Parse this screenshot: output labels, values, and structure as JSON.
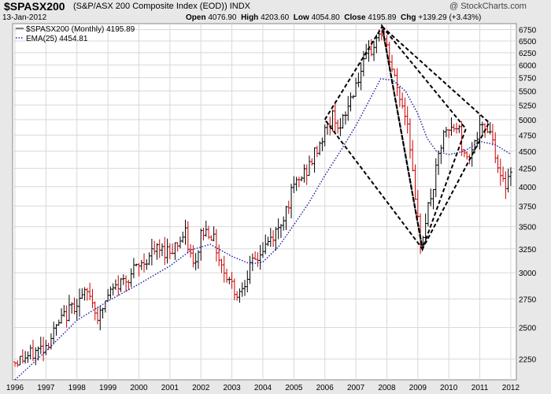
{
  "header": {
    "symbol": "$SPASX200",
    "description": "(S&P/ASX 200 Composite Index (EOD))  INDX",
    "brand": "@ StockCharts.com",
    "date": "13-Jan-2012",
    "open_label": "Open",
    "open": "4076.90",
    "high_label": "High",
    "high": "4203.60",
    "low_label": "Low",
    "low": "4054.80",
    "close_label": "Close",
    "close": "4195.89",
    "chg_label": "Chg",
    "chg": "+139.29 (+3.43%)"
  },
  "legend": {
    "price_label": "$SPASX200 (Monthly) 4195.89",
    "ema_label": "EMA(25) 4454.81"
  },
  "colors": {
    "up": "#000000",
    "down": "#cc0000",
    "ema": "#1a1aa6",
    "grid": "#d8d8d8",
    "plot_bg": "#ffffff",
    "frame_bg": "#e8e8e8"
  },
  "chart_data": {
    "type": "ohlc-bar",
    "frequency": "monthly",
    "x_tick_labels": [
      "1996",
      "1997",
      "1998",
      "1999",
      "2000",
      "2001",
      "2002",
      "2003",
      "2004",
      "2005",
      "2006",
      "2007",
      "2008",
      "2009",
      "2010",
      "2011",
      "2012"
    ],
    "y_tick_labels": [
      2250,
      2500,
      2750,
      3000,
      3250,
      3500,
      3750,
      4000,
      4250,
      4500,
      4750,
      5000,
      5250,
      5500,
      5750,
      6000,
      6250,
      6500,
      6750
    ],
    "ylim": [
      2100,
      6850
    ],
    "grid": true,
    "legend_position": "top-left",
    "close_path": [
      [
        1996.0,
        2230
      ],
      [
        1996.5,
        2280
      ],
      [
        1997.0,
        2360
      ],
      [
        1997.5,
        2560
      ],
      [
        1998.0,
        2730
      ],
      [
        1998.4,
        2810
      ],
      [
        1998.7,
        2570
      ],
      [
        1999.0,
        2780
      ],
      [
        1999.5,
        2930
      ],
      [
        2000.0,
        3060
      ],
      [
        2000.5,
        3230
      ],
      [
        2001.0,
        3240
      ],
      [
        2001.5,
        3400
      ],
      [
        2001.8,
        3000
      ],
      [
        2002.0,
        3430
      ],
      [
        2002.3,
        3460
      ],
      [
        2002.7,
        3050
      ],
      [
        2003.0,
        2890
      ],
      [
        2003.2,
        2780
      ],
      [
        2003.5,
        3000
      ],
      [
        2004.0,
        3240
      ],
      [
        2004.5,
        3470
      ],
      [
        2005.0,
        3980
      ],
      [
        2005.5,
        4280
      ],
      [
        2006.0,
        4800
      ],
      [
        2006.3,
        5100
      ],
      [
        2006.5,
        4820
      ],
      [
        2007.0,
        5650
      ],
      [
        2007.5,
        6300
      ],
      [
        2007.8,
        6750
      ],
      [
        2008.0,
        6300
      ],
      [
        2008.3,
        5600
      ],
      [
        2008.7,
        4900
      ],
      [
        2008.9,
        3800
      ],
      [
        2009.1,
        3300
      ],
      [
        2009.2,
        3500
      ],
      [
        2009.5,
        4000
      ],
      [
        2009.8,
        4700
      ],
      [
        2010.0,
        4800
      ],
      [
        2010.3,
        4900
      ],
      [
        2010.5,
        4400
      ],
      [
        2010.8,
        4600
      ],
      [
        2011.0,
        4800
      ],
      [
        2011.3,
        4900
      ],
      [
        2011.5,
        4500
      ],
      [
        2011.7,
        4000
      ],
      [
        2011.9,
        4100
      ],
      [
        2012.0,
        4195.89
      ]
    ],
    "ema_path": [
      [
        1996.0,
        2100
      ],
      [
        1997.0,
        2310
      ],
      [
        1998.0,
        2560
      ],
      [
        1999.0,
        2730
      ],
      [
        2000.0,
        2890
      ],
      [
        2001.0,
        3070
      ],
      [
        2001.7,
        3240
      ],
      [
        2002.3,
        3300
      ],
      [
        2003.0,
        3170
      ],
      [
        2003.6,
        3090
      ],
      [
        2004.0,
        3110
      ],
      [
        2004.5,
        3270
      ],
      [
        2005.0,
        3520
      ],
      [
        2005.5,
        3800
      ],
      [
        2006.0,
        4150
      ],
      [
        2006.5,
        4500
      ],
      [
        2007.0,
        4900
      ],
      [
        2007.5,
        5400
      ],
      [
        2007.8,
        5730
      ],
      [
        2008.2,
        5700
      ],
      [
        2008.6,
        5500
      ],
      [
        2009.0,
        5100
      ],
      [
        2009.3,
        4700
      ],
      [
        2009.6,
        4500
      ],
      [
        2010.0,
        4450
      ],
      [
        2010.5,
        4500
      ],
      [
        2011.0,
        4650
      ],
      [
        2011.5,
        4600
      ],
      [
        2012.0,
        4454.81
      ]
    ],
    "annotations": [
      {
        "type": "diamond",
        "points": [
          [
            2006.0,
            5000
          ],
          [
            2007.85,
            6820
          ],
          [
            2009.15,
            3250
          ]
        ]
      },
      {
        "type": "diamond",
        "points": [
          [
            2007.85,
            6820
          ],
          [
            2010.55,
            4850
          ],
          [
            2009.15,
            3250
          ]
        ]
      },
      {
        "type": "diamond",
        "points": [
          [
            2007.85,
            6820
          ],
          [
            2011.3,
            4950
          ],
          [
            2009.15,
            3250
          ]
        ]
      }
    ]
  }
}
